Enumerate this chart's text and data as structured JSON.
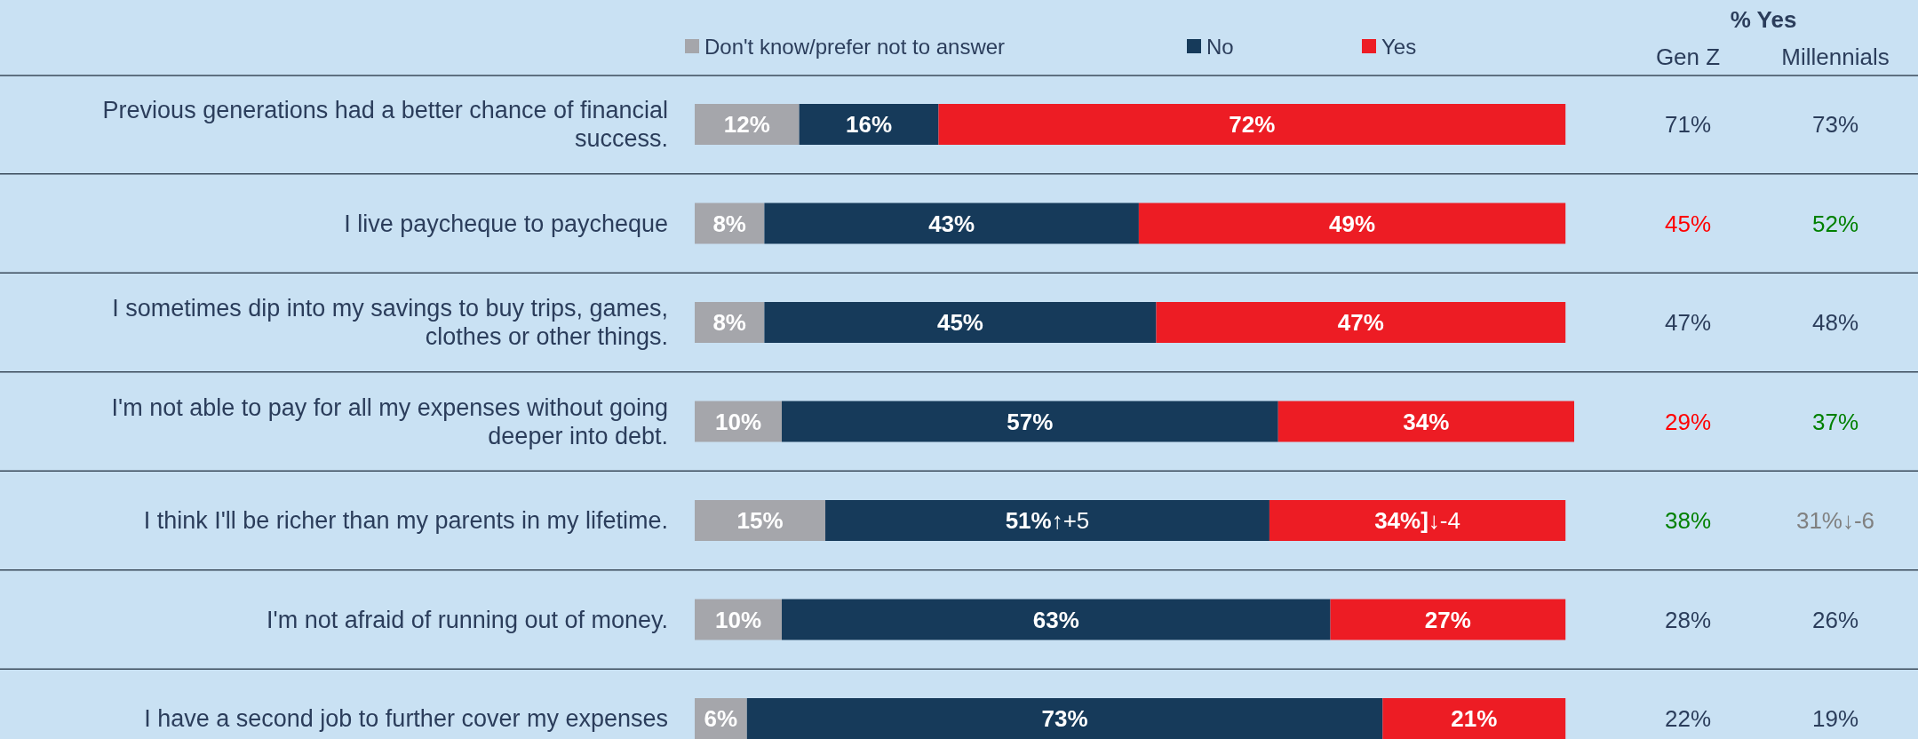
{
  "chart_data": [
    {
      "type": "bar",
      "orientation": "horizontal",
      "stacked": true,
      "legend": "top",
      "categories": [
        "Previous generations had a better chance of financial success.",
        "I live paycheque to paycheque",
        "I sometimes dip into my savings to buy trips, games, clothes or other things.",
        "I'm not able to pay for all my expenses without going deeper into debt.",
        "I think I'll be richer than my parents in my lifetime.",
        "I'm not afraid of running out of money.",
        "I have a second job to further cover my expenses"
      ],
      "series": [
        {
          "name": "Don't know/prefer not to answer",
          "color": "#a5a6ab",
          "values": [
            12,
            8,
            8,
            10,
            15,
            10,
            6
          ],
          "value_labels": [
            "12%",
            "8%",
            "8%",
            "10%",
            "15%",
            "10%",
            "6%"
          ]
        },
        {
          "name": "No",
          "color": "#163a5a",
          "values": [
            16,
            43,
            45,
            57,
            51,
            63,
            73
          ],
          "value_labels": [
            "16%",
            "43%",
            "45%",
            "57%",
            "51%↑+5",
            "63%",
            "73%"
          ]
        },
        {
          "name": "Yes",
          "color": "#ed1c24",
          "values": [
            72,
            49,
            47,
            34,
            34,
            27,
            21
          ],
          "value_labels": [
            "72%",
            "49%",
            "47%",
            "34%",
            "34%]↓-4",
            "27%",
            "21%"
          ]
        }
      ]
    },
    {
      "type": "other",
      "title": "% Yes",
      "annotations": [
        "Gen Z",
        "Millennials",
        "71%",
        "73%",
        "45%",
        "52%",
        "47%",
        "48%",
        "29%",
        "37%",
        "38%",
        "31%↓-6",
        "28%",
        "26%",
        "22%",
        "19%"
      ],
      "colors": [
        "#2b3d5b",
        "#2b3d5b",
        "#2b3d5b",
        "#2b3d5b",
        "#ff0000",
        "#008000",
        "#2b3d5b",
        "#2b3d5b",
        "#ff0000",
        "#008000",
        "#008000",
        "#808080",
        "#2b3d5b",
        "#2b3d5b",
        "#2b3d5b",
        "#2b3d5b"
      ]
    }
  ]
}
